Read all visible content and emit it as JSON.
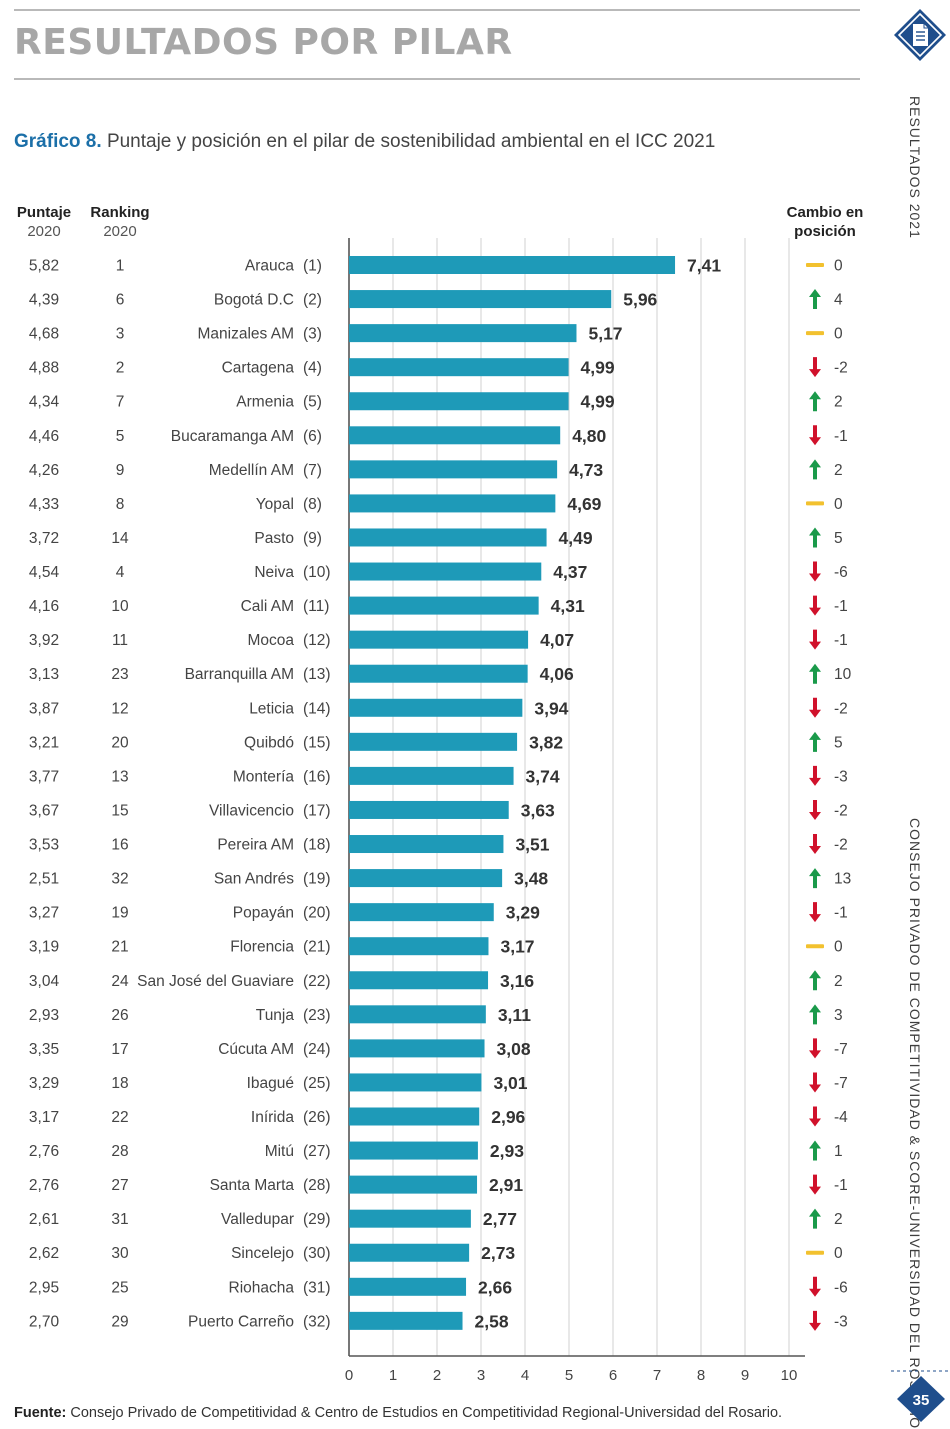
{
  "header": {
    "section_title": "RESULTADOS POR PILAR",
    "chart_label": "Gráfico 8.",
    "chart_title": "Puntaje y posición en el pilar de sostenibilidad ambiental en el ICC 2021"
  },
  "columns": {
    "score_2020": [
      "Puntaje",
      "2020"
    ],
    "rank_2020": [
      "Ranking",
      "2020"
    ],
    "change": [
      "Cambio en",
      "posición"
    ]
  },
  "side": {
    "tab_icon": "document-icon",
    "vertical_section": "RESULTADOS 2021",
    "vertical_org": "CONSEJO PRIVADO DE COMPETITIVIDAD & SCORE-UNIVERSIDAD DEL ROSARIO",
    "page_number": "35"
  },
  "footer": {
    "source_label": "Fuente:",
    "source_text": "Consejo Privado de Competitividad & Centro de Estudios en Competitividad Regional-Universidad del Rosario."
  },
  "colors": {
    "bar": "#1e9ab8",
    "up": "#1a9a4a",
    "down": "#d0112b",
    "same": "#f2c12e",
    "brand": "#1f4e8c"
  },
  "chart_data": {
    "type": "bar",
    "orientation": "horizontal",
    "xlim": [
      0,
      10
    ],
    "xticks": [
      "0",
      "1",
      "2",
      "3",
      "4",
      "5",
      "6",
      "7",
      "8",
      "9",
      "10"
    ],
    "grid": true,
    "rows": [
      {
        "label": "Arauca",
        "rank": "(1)",
        "value": 7.41,
        "value_label": "7,41",
        "score_2020": "5,82",
        "rank_2020": "1",
        "change": 0,
        "change_label": "0"
      },
      {
        "label": "Bogotá D.C",
        "rank": "(2)",
        "value": 5.96,
        "value_label": "5,96",
        "score_2020": "4,39",
        "rank_2020": "6",
        "change": 4,
        "change_label": "4"
      },
      {
        "label": "Manizales AM",
        "rank": "(3)",
        "value": 5.17,
        "value_label": "5,17",
        "score_2020": "4,68",
        "rank_2020": "3",
        "change": 0,
        "change_label": "0"
      },
      {
        "label": "Cartagena",
        "rank": "(4)",
        "value": 4.99,
        "value_label": "4,99",
        "score_2020": "4,88",
        "rank_2020": "2",
        "change": -2,
        "change_label": "-2"
      },
      {
        "label": "Armenia",
        "rank": "(5)",
        "value": 4.99,
        "value_label": "4,99",
        "score_2020": "4,34",
        "rank_2020": "7",
        "change": 2,
        "change_label": "2"
      },
      {
        "label": "Bucaramanga AM",
        "rank": "(6)",
        "value": 4.8,
        "value_label": "4,80",
        "score_2020": "4,46",
        "rank_2020": "5",
        "change": -1,
        "change_label": "-1"
      },
      {
        "label": "Medellín AM",
        "rank": "(7)",
        "value": 4.73,
        "value_label": "4,73",
        "score_2020": "4,26",
        "rank_2020": "9",
        "change": 2,
        "change_label": "2"
      },
      {
        "label": "Yopal",
        "rank": "(8)",
        "value": 4.69,
        "value_label": "4,69",
        "score_2020": "4,33",
        "rank_2020": "8",
        "change": 0,
        "change_label": "0"
      },
      {
        "label": "Pasto",
        "rank": "(9)",
        "value": 4.49,
        "value_label": "4,49",
        "score_2020": "3,72",
        "rank_2020": "14",
        "change": 5,
        "change_label": "5"
      },
      {
        "label": "Neiva",
        "rank": "(10)",
        "value": 4.37,
        "value_label": "4,37",
        "score_2020": "4,54",
        "rank_2020": "4",
        "change": -6,
        "change_label": "-6"
      },
      {
        "label": "Cali AM",
        "rank": "(11)",
        "value": 4.31,
        "value_label": "4,31",
        "score_2020": "4,16",
        "rank_2020": "10",
        "change": -1,
        "change_label": "-1"
      },
      {
        "label": "Mocoa",
        "rank": "(12)",
        "value": 4.07,
        "value_label": "4,07",
        "score_2020": "3,92",
        "rank_2020": "11",
        "change": -1,
        "change_label": "-1"
      },
      {
        "label": "Barranquilla AM",
        "rank": "(13)",
        "value": 4.06,
        "value_label": "4,06",
        "score_2020": "3,13",
        "rank_2020": "23",
        "change": 10,
        "change_label": "10"
      },
      {
        "label": "Leticia",
        "rank": "(14)",
        "value": 3.94,
        "value_label": "3,94",
        "score_2020": "3,87",
        "rank_2020": "12",
        "change": -2,
        "change_label": "-2"
      },
      {
        "label": "Quibdó",
        "rank": "(15)",
        "value": 3.82,
        "value_label": "3,82",
        "score_2020": "3,21",
        "rank_2020": "20",
        "change": 5,
        "change_label": "5"
      },
      {
        "label": "Montería",
        "rank": "(16)",
        "value": 3.74,
        "value_label": "3,74",
        "score_2020": "3,77",
        "rank_2020": "13",
        "change": -3,
        "change_label": "-3"
      },
      {
        "label": "Villavicencio",
        "rank": "(17)",
        "value": 3.63,
        "value_label": "3,63",
        "score_2020": "3,67",
        "rank_2020": "15",
        "change": -2,
        "change_label": "-2"
      },
      {
        "label": "Pereira AM",
        "rank": "(18)",
        "value": 3.51,
        "value_label": "3,51",
        "score_2020": "3,53",
        "rank_2020": "16",
        "change": -2,
        "change_label": "-2"
      },
      {
        "label": "San Andrés",
        "rank": "(19)",
        "value": 3.48,
        "value_label": "3,48",
        "score_2020": "2,51",
        "rank_2020": "32",
        "change": 13,
        "change_label": "13"
      },
      {
        "label": "Popayán",
        "rank": "(20)",
        "value": 3.29,
        "value_label": "3,29",
        "score_2020": "3,27",
        "rank_2020": "19",
        "change": -1,
        "change_label": "-1"
      },
      {
        "label": "Florencia",
        "rank": "(21)",
        "value": 3.17,
        "value_label": "3,17",
        "score_2020": "3,19",
        "rank_2020": "21",
        "change": 0,
        "change_label": "0"
      },
      {
        "label": "San José del Guaviare",
        "rank": "(22)",
        "value": 3.16,
        "value_label": "3,16",
        "score_2020": "3,04",
        "rank_2020": "24",
        "change": 2,
        "change_label": "2"
      },
      {
        "label": "Tunja",
        "rank": "(23)",
        "value": 3.11,
        "value_label": "3,11",
        "score_2020": "2,93",
        "rank_2020": "26",
        "change": 3,
        "change_label": "3"
      },
      {
        "label": "Cúcuta AM",
        "rank": "(24)",
        "value": 3.08,
        "value_label": "3,08",
        "score_2020": "3,35",
        "rank_2020": "17",
        "change": -7,
        "change_label": "-7"
      },
      {
        "label": "Ibagué",
        "rank": "(25)",
        "value": 3.01,
        "value_label": "3,01",
        "score_2020": "3,29",
        "rank_2020": "18",
        "change": -7,
        "change_label": "-7"
      },
      {
        "label": "Inírida",
        "rank": "(26)",
        "value": 2.96,
        "value_label": "2,96",
        "score_2020": "3,17",
        "rank_2020": "22",
        "change": -4,
        "change_label": "-4"
      },
      {
        "label": "Mitú",
        "rank": "(27)",
        "value": 2.93,
        "value_label": "2,93",
        "score_2020": "2,76",
        "rank_2020": "28",
        "change": 1,
        "change_label": "1"
      },
      {
        "label": "Santa Marta",
        "rank": "(28)",
        "value": 2.91,
        "value_label": "2,91",
        "score_2020": "2,76",
        "rank_2020": "27",
        "change": -1,
        "change_label": "-1"
      },
      {
        "label": "Valledupar",
        "rank": "(29)",
        "value": 2.77,
        "value_label": "2,77",
        "score_2020": "2,61",
        "rank_2020": "31",
        "change": 2,
        "change_label": "2"
      },
      {
        "label": "Sincelejo",
        "rank": "(30)",
        "value": 2.73,
        "value_label": "2,73",
        "score_2020": "2,62",
        "rank_2020": "30",
        "change": 0,
        "change_label": "0"
      },
      {
        "label": "Riohacha",
        "rank": "(31)",
        "value": 2.66,
        "value_label": "2,66",
        "score_2020": "2,95",
        "rank_2020": "25",
        "change": -6,
        "change_label": "-6"
      },
      {
        "label": "Puerto Carreño",
        "rank": "(32)",
        "value": 2.58,
        "value_label": "2,58",
        "score_2020": "2,70",
        "rank_2020": "29",
        "change": -3,
        "change_label": "-3"
      }
    ]
  }
}
